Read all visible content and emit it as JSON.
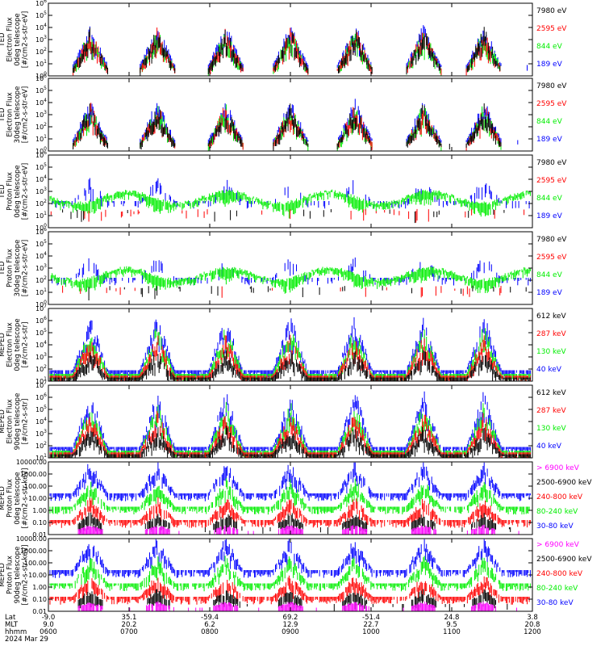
{
  "colors": {
    "blue": "#0000ff",
    "green": "#00ee00",
    "red": "#ff0000",
    "black": "#000000",
    "magenta": "#ff00ff"
  },
  "chart_data": [
    {
      "type": "scatter",
      "panel": 1,
      "instrument": "TED",
      "quantity": "Electron Flux",
      "ylabel_lines": [
        "TED",
        "Electron Flux",
        "0deg telescope",
        "[#/cm2-s-str-eV]"
      ],
      "yscale": "log",
      "ylim": [
        1,
        1000000
      ],
      "yticks": [
        {
          "v": 1,
          "t": "10^0"
        },
        {
          "v": 10,
          "t": "10^1"
        },
        {
          "v": 100,
          "t": "10^2"
        },
        {
          "v": 1000,
          "t": "10^3"
        },
        {
          "v": 10000,
          "t": "10^4"
        },
        {
          "v": 100000,
          "t": "10^5"
        },
        {
          "v": 1000000,
          "t": "10^6"
        }
      ],
      "series": [
        {
          "name": "7980 eV",
          "color": "#000000"
        },
        {
          "name": "2595 eV",
          "color": "#ff0000"
        },
        {
          "name": "844 eV",
          "color": "#00ee00"
        },
        {
          "name": "189 eV",
          "color": "#0000ff"
        }
      ]
    },
    {
      "type": "scatter",
      "panel": 2,
      "instrument": "TED",
      "quantity": "Electron Flux",
      "ylabel_lines": [
        "TED",
        "Electron Flux",
        "30deg telescope",
        "[#/cm2-s-str-eV]"
      ],
      "yscale": "log",
      "ylim": [
        1,
        1000000
      ],
      "yticks": [
        {
          "v": 1,
          "t": "10^0"
        },
        {
          "v": 10,
          "t": "10^1"
        },
        {
          "v": 100,
          "t": "10^2"
        },
        {
          "v": 1000,
          "t": "10^3"
        },
        {
          "v": 10000,
          "t": "10^4"
        },
        {
          "v": 100000,
          "t": "10^5"
        },
        {
          "v": 1000000,
          "t": "10^6"
        }
      ],
      "series": [
        {
          "name": "7980 eV",
          "color": "#000000"
        },
        {
          "name": "2595 eV",
          "color": "#ff0000"
        },
        {
          "name": "844 eV",
          "color": "#00ee00"
        },
        {
          "name": "189 eV",
          "color": "#0000ff"
        }
      ]
    },
    {
      "type": "scatter",
      "panel": 3,
      "instrument": "TED",
      "quantity": "Proton Flux",
      "ylabel_lines": [
        "TED",
        "Proton Flux",
        "0deg telescope",
        "[#/cm2-s-str-eV]"
      ],
      "yscale": "log",
      "ylim": [
        1,
        1000000
      ],
      "yticks": [
        {
          "v": 1,
          "t": "10^0"
        },
        {
          "v": 10,
          "t": "10^1"
        },
        {
          "v": 100,
          "t": "10^2"
        },
        {
          "v": 1000,
          "t": "10^3"
        },
        {
          "v": 10000,
          "t": "10^4"
        },
        {
          "v": 100000,
          "t": "10^5"
        },
        {
          "v": 1000000,
          "t": "10^6"
        }
      ],
      "series": [
        {
          "name": "7980 eV",
          "color": "#000000"
        },
        {
          "name": "2595 eV",
          "color": "#ff0000"
        },
        {
          "name": "844 eV",
          "color": "#00ee00"
        },
        {
          "name": "189 eV",
          "color": "#0000ff"
        }
      ]
    },
    {
      "type": "scatter",
      "panel": 4,
      "instrument": "TED",
      "quantity": "Proton Flux",
      "ylabel_lines": [
        "TED",
        "Proton Flux",
        "30deg telescope",
        "[#/cm2-s-str-eV]"
      ],
      "yscale": "log",
      "ylim": [
        1,
        1000000
      ],
      "yticks": [
        {
          "v": 1,
          "t": "10^0"
        },
        {
          "v": 10,
          "t": "10^1"
        },
        {
          "v": 100,
          "t": "10^2"
        },
        {
          "v": 1000,
          "t": "10^3"
        },
        {
          "v": 10000,
          "t": "10^4"
        },
        {
          "v": 100000,
          "t": "10^5"
        },
        {
          "v": 1000000,
          "t": "10^6"
        }
      ],
      "series": [
        {
          "name": "7980 eV",
          "color": "#000000"
        },
        {
          "name": "2595 eV",
          "color": "#ff0000"
        },
        {
          "name": "844 eV",
          "color": "#00ee00"
        },
        {
          "name": "189 eV",
          "color": "#0000ff"
        }
      ]
    },
    {
      "type": "scatter",
      "panel": 5,
      "instrument": "MEPED",
      "quantity": "Electron Flux",
      "ylabel_lines": [
        "MEPED",
        "Electron Flux",
        "0deg telescope",
        "[#/cm2-s-str]"
      ],
      "yscale": "log",
      "ylim": [
        10,
        10000000
      ],
      "yticks": [
        {
          "v": 10,
          "t": "10^1"
        },
        {
          "v": 100,
          "t": "10^2"
        },
        {
          "v": 1000,
          "t": "10^3"
        },
        {
          "v": 10000,
          "t": "10^4"
        },
        {
          "v": 100000,
          "t": "10^5"
        },
        {
          "v": 1000000,
          "t": "10^6"
        },
        {
          "v": 10000000,
          "t": "10^7"
        }
      ],
      "series": [
        {
          "name": "612 keV",
          "color": "#000000"
        },
        {
          "name": "287 keV",
          "color": "#ff0000"
        },
        {
          "name": "130 keV",
          "color": "#00ee00"
        },
        {
          "name": "40 keV",
          "color": "#0000ff"
        }
      ]
    },
    {
      "type": "scatter",
      "panel": 6,
      "instrument": "MEPED",
      "quantity": "Electron Flux",
      "ylabel_lines": [
        "MEPED",
        "Electron Flux",
        "90deg telescope",
        "[#/cm2-s-str]"
      ],
      "yscale": "log",
      "ylim": [
        10,
        10000000
      ],
      "yticks": [
        {
          "v": 10,
          "t": "10^1"
        },
        {
          "v": 100,
          "t": "10^2"
        },
        {
          "v": 1000,
          "t": "10^3"
        },
        {
          "v": 10000,
          "t": "10^4"
        },
        {
          "v": 100000,
          "t": "10^5"
        },
        {
          "v": 1000000,
          "t": "10^6"
        },
        {
          "v": 10000000,
          "t": "10^7"
        }
      ],
      "series": [
        {
          "name": "612 keV",
          "color": "#000000"
        },
        {
          "name": "287 keV",
          "color": "#ff0000"
        },
        {
          "name": "130 keV",
          "color": "#00ee00"
        },
        {
          "name": "40 keV",
          "color": "#0000ff"
        }
      ]
    },
    {
      "type": "scatter",
      "panel": 7,
      "instrument": "MEPED",
      "quantity": "Proton Flux",
      "ylabel_lines": [
        "MEPED",
        "Proton Flux",
        "0deg telescope",
        "[#/cm2-s-str-keV]"
      ],
      "yscale": "log",
      "ylim": [
        0.01,
        10000
      ],
      "yticks": [
        {
          "v": 0.01,
          "t": "0.01"
        },
        {
          "v": 0.1,
          "t": "0.10"
        },
        {
          "v": 1,
          "t": "1.00"
        },
        {
          "v": 10,
          "t": "10.00"
        },
        {
          "v": 100,
          "t": "100.00"
        },
        {
          "v": 1000,
          "t": "1000.00"
        },
        {
          "v": 10000,
          "t": "10000.00"
        }
      ],
      "series": [
        {
          "name": "> 6900 keV",
          "color": "#ff00ff"
        },
        {
          "name": "2500-6900 keV",
          "color": "#000000"
        },
        {
          "name": "240-800 keV",
          "color": "#ff0000"
        },
        {
          "name": "80-240 keV",
          "color": "#00ee00"
        },
        {
          "name": "30-80 keV",
          "color": "#0000ff"
        }
      ]
    },
    {
      "type": "scatter",
      "panel": 8,
      "instrument": "MEPED",
      "quantity": "Proton Flux",
      "ylabel_lines": [
        "MEPED",
        "Proton Flux",
        "90deg telescope",
        "[#/cm2-s-str-keV]"
      ],
      "yscale": "log",
      "ylim": [
        0.01,
        10000
      ],
      "yticks": [
        {
          "v": 0.01,
          "t": "0.01"
        },
        {
          "v": 0.1,
          "t": "0.10"
        },
        {
          "v": 1,
          "t": "1.00"
        },
        {
          "v": 10,
          "t": "10.00"
        },
        {
          "v": 100,
          "t": "100.00"
        },
        {
          "v": 1000,
          "t": "1000.00"
        },
        {
          "v": 10000,
          "t": "10000.00"
        }
      ],
      "series": [
        {
          "name": "> 6900 keV",
          "color": "#ff00ff"
        },
        {
          "name": "2500-6900 keV",
          "color": "#000000"
        },
        {
          "name": "240-800 keV",
          "color": "#ff0000"
        },
        {
          "name": "80-240 keV",
          "color": "#00ee00"
        },
        {
          "name": "30-80 keV",
          "color": "#0000ff"
        }
      ]
    }
  ],
  "x_axis": {
    "row_labels": [
      "Lat",
      "MLT",
      "hhmm",
      "2024 Mar 29"
    ],
    "ticks": [
      {
        "lat": "-9.0",
        "mlt": "9.0",
        "hhmm": "0600"
      },
      {
        "lat": "35.1",
        "mlt": "20.2",
        "hhmm": "0700"
      },
      {
        "lat": "-59.4",
        "mlt": "6.2",
        "hhmm": "0800"
      },
      {
        "lat": "69.2",
        "mlt": "12.9",
        "hhmm": "0900"
      },
      {
        "lat": "-51.4",
        "mlt": "22.7",
        "hhmm": "1000"
      },
      {
        "lat": "24.8",
        "mlt": "9.5",
        "hhmm": "1100"
      },
      {
        "lat": "3.8",
        "mlt": "20.8",
        "hhmm": "1200"
      }
    ]
  }
}
